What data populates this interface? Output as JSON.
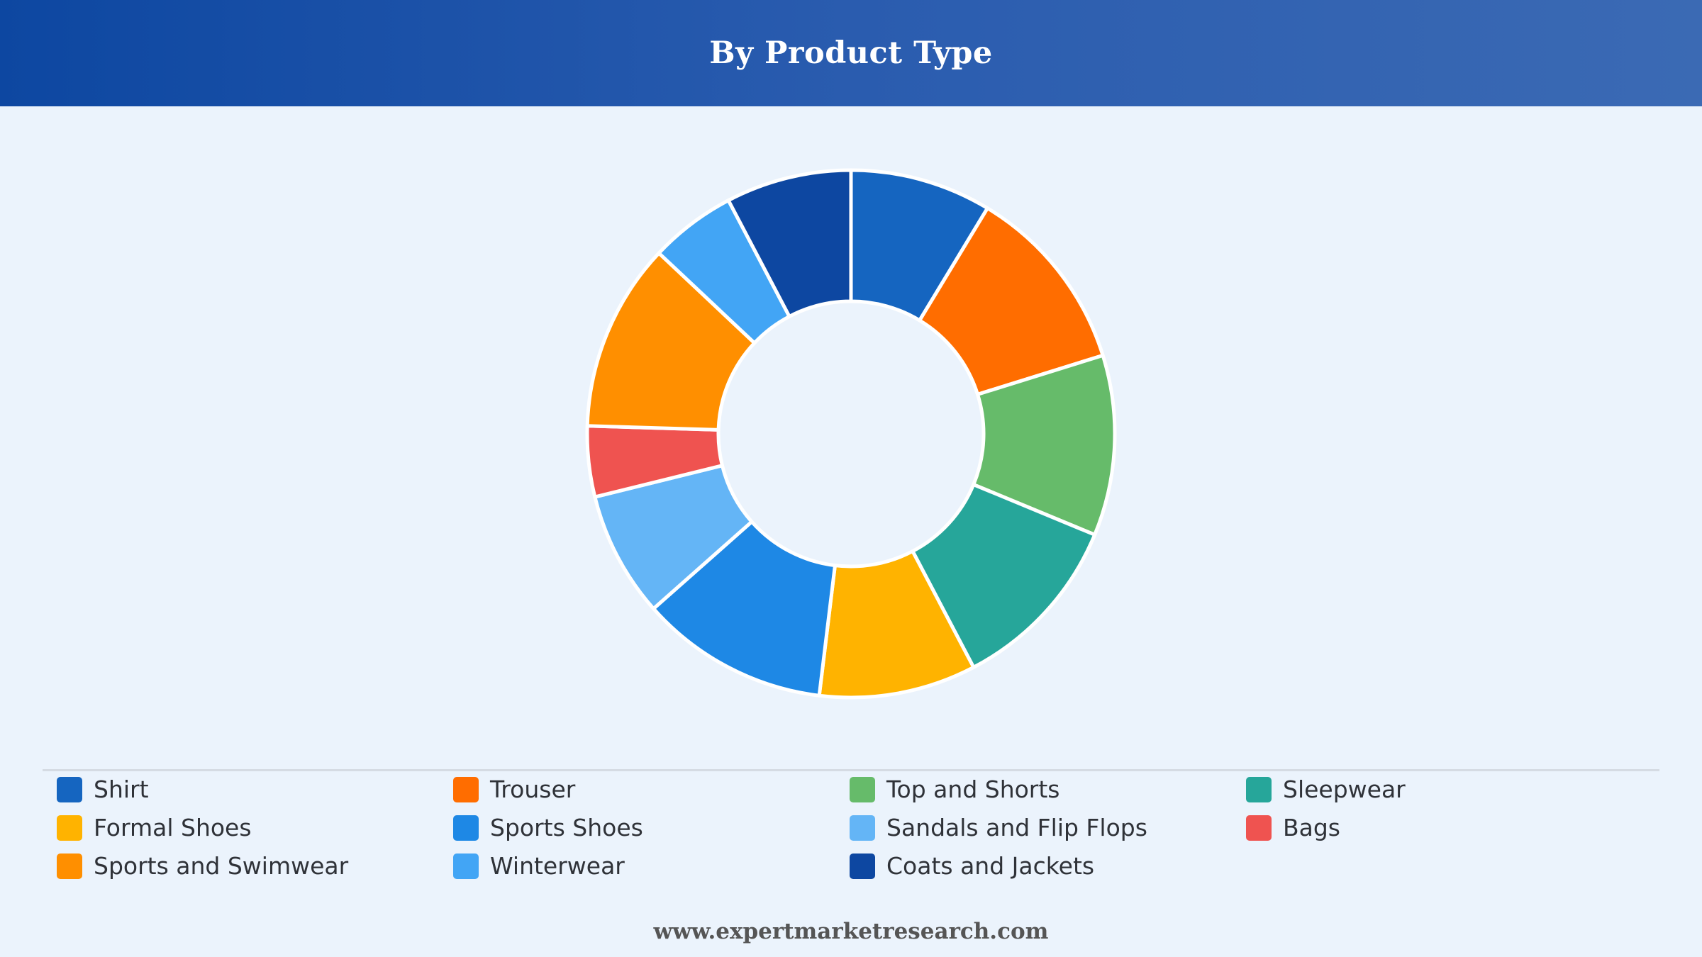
{
  "header": {
    "title": "By Product Type"
  },
  "footer": {
    "text": "www.expertmarketresearch.com"
  },
  "chart_data": {
    "type": "pie",
    "variant": "donut",
    "title": "By Product Type",
    "legend_placement": "bottom",
    "categories": [
      "Shirt",
      "Trouser",
      "Top and Shorts",
      "Sleepwear",
      "Formal Shoes",
      "Sports Shoes",
      "Sandals and Flip Flops",
      "Bags",
      "Sports and Swimwear",
      "Winterwear",
      "Coats and Jackets"
    ],
    "values": [
      9,
      12,
      11.5,
      11.5,
      10,
      12,
      8,
      4.5,
      12,
      5.5,
      8
    ],
    "colors": [
      "#1565c0",
      "#ff6d00",
      "#66bb6a",
      "#26a69a",
      "#ffb300",
      "#1e88e5",
      "#64b5f6",
      "#ef5350",
      "#ff8f00",
      "#42a5f5",
      "#0d47a1"
    ]
  }
}
